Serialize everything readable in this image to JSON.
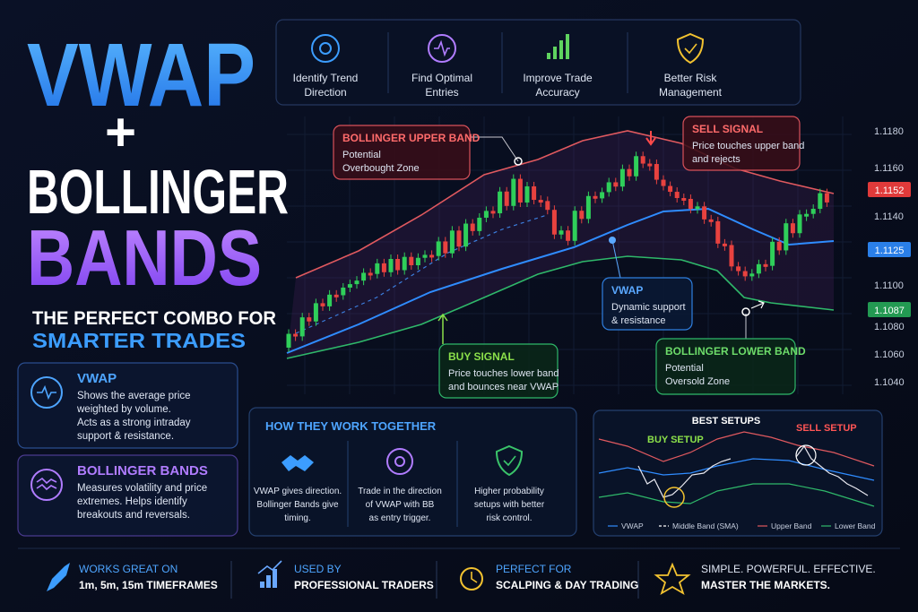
{
  "title": {
    "main": "VWAP",
    "plus": "+",
    "line2": "BOLLINGER",
    "line3": "BANDS",
    "tagline": "THE PERFECT COMBO FOR",
    "highlight": "SMARTER TRADES"
  },
  "features": [
    {
      "lines": [
        "Identify Trend",
        "Direction"
      ]
    },
    {
      "lines": [
        "Find Optimal",
        "Entries"
      ]
    },
    {
      "lines": [
        "Improve Trade",
        "Accuracy"
      ]
    },
    {
      "lines": [
        "Better Risk",
        "Management"
      ]
    }
  ],
  "price_axis": {
    "ticks": [
      "1.1180",
      "1.1160",
      "1.1140",
      "1.1100",
      "1.1080",
      "1.1060",
      "1.1040"
    ],
    "tags": [
      "1.1152",
      "1.1125",
      "1.1087"
    ]
  },
  "annotations": {
    "upper_band": {
      "title": "BOLLINGER UPPER BAND",
      "lines": [
        "Potential",
        "Overbought Zone"
      ]
    },
    "sell": {
      "title": "SELL SIGNAL",
      "lines": [
        "Price touches upper band",
        "and rejects"
      ]
    },
    "vwap": {
      "title": "VWAP",
      "lines": [
        "Dynamic support",
        "& resistance"
      ]
    },
    "buy": {
      "title": "BUY SIGNAL",
      "lines": [
        "Price touches lower band",
        "and bounces near VWAP"
      ]
    },
    "lower_band": {
      "title": "BOLLINGER LOWER BAND",
      "lines": [
        "Potential",
        "Oversold Zone"
      ]
    }
  },
  "cards": [
    {
      "title": "VWAP",
      "lines": [
        "Shows the average price",
        "weighted by volume.",
        "Acts as a strong intraday",
        "support & resistance."
      ]
    },
    {
      "title": "BOLLINGER BANDS",
      "lines": [
        "Measures volatility and price",
        "extremes. Helps identify",
        "breakouts and reversals."
      ]
    }
  ],
  "together": {
    "title": "HOW THEY WORK TOGETHER",
    "items": [
      {
        "lines": [
          "VWAP gives direction.",
          "Bollinger Bands give",
          "timing."
        ]
      },
      {
        "lines": [
          "Trade in the direction",
          "of VWAP with BB",
          "as entry trigger."
        ]
      },
      {
        "lines": [
          "Higher probability",
          "setups with better",
          "risk control."
        ]
      }
    ]
  },
  "best_setups": {
    "title": "BEST SETUPS",
    "buy": "BUY SETUP",
    "sell": "SELL SETUP",
    "legend": [
      "VWAP",
      "Middle Band (SMA)",
      "Upper Band",
      "Lower Band"
    ]
  },
  "footer": [
    {
      "lines": [
        "WORKS GREAT ON",
        "1m, 5m, 15m TIMEFRAMES"
      ]
    },
    {
      "lines": [
        "USED BY",
        "PROFESSIONAL TRADERS"
      ]
    },
    {
      "lines": [
        "PERFECT FOR",
        "SCALPING & DAY TRADING"
      ]
    },
    {
      "lines": [
        "SIMPLE. POWERFUL. EFFECTIVE.",
        "MASTER THE MARKETS."
      ]
    }
  ]
}
